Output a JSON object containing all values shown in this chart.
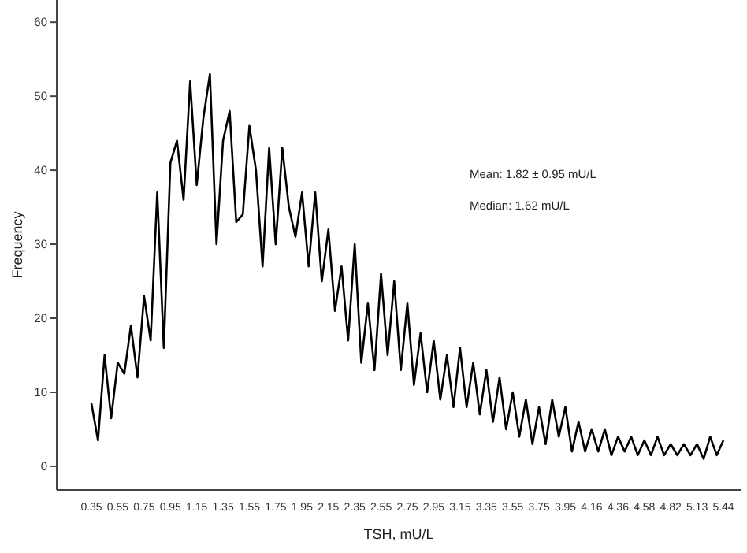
{
  "chart_data": {
    "type": "line",
    "xlabel": "TSH, mU/L",
    "ylabel": "Frequency",
    "categories": [
      "0.35",
      null,
      null,
      null,
      "0.55",
      null,
      null,
      null,
      "0.75",
      null,
      null,
      null,
      "0.95",
      null,
      null,
      null,
      "1.15",
      null,
      null,
      null,
      "1.35",
      null,
      null,
      null,
      "1.55",
      null,
      null,
      null,
      "1.75",
      null,
      null,
      null,
      "1.95",
      null,
      null,
      null,
      "2.15",
      null,
      null,
      null,
      "2.35",
      null,
      null,
      null,
      "2.55",
      null,
      null,
      null,
      "2.75",
      null,
      null,
      null,
      "2.95",
      null,
      null,
      null,
      "3.15",
      null,
      null,
      null,
      "3.35",
      null,
      null,
      null,
      "3.55",
      null,
      null,
      null,
      "3.75",
      null,
      null,
      null,
      "3.95",
      null,
      null,
      null,
      "4.16",
      null,
      null,
      null,
      "4.36",
      null,
      null,
      null,
      "4.58",
      null,
      null,
      null,
      "4.82",
      null,
      null,
      null,
      "5.13",
      null,
      null,
      null,
      "5.44"
    ],
    "series": [
      {
        "color": "#000000",
        "values": [
          8.5,
          3.5,
          15,
          6.5,
          14,
          12.5,
          19,
          12,
          23,
          17,
          37,
          16,
          41,
          44,
          36,
          52,
          38,
          47,
          53,
          30,
          44,
          48,
          33,
          34,
          46,
          40,
          27,
          43,
          30,
          43,
          35,
          31,
          37,
          27,
          37,
          25,
          32,
          21,
          27,
          17,
          30,
          14,
          22,
          13,
          26,
          15,
          25,
          13,
          22,
          11,
          18,
          10,
          17,
          9,
          15,
          8,
          16,
          8,
          14,
          7,
          13,
          6,
          12,
          5,
          10,
          4,
          9,
          3,
          8,
          3,
          9,
          4,
          8,
          2,
          6,
          2,
          5,
          2,
          5,
          1.5,
          4,
          2,
          4,
          1.5,
          3.5,
          1.5,
          4,
          1.5,
          3,
          1.5,
          3,
          1.5,
          3,
          1,
          4,
          1.5,
          3.5
        ]
      }
    ],
    "ylim": [
      -3.2,
      63
    ],
    "yticks": [
      0,
      10,
      20,
      30,
      40,
      50,
      60
    ],
    "marker": "none",
    "line_style": "solid",
    "annotations": [
      "Mean: 1.82 ± 0.95 mU/L",
      "Median: 1.62 mU/L"
    ]
  }
}
